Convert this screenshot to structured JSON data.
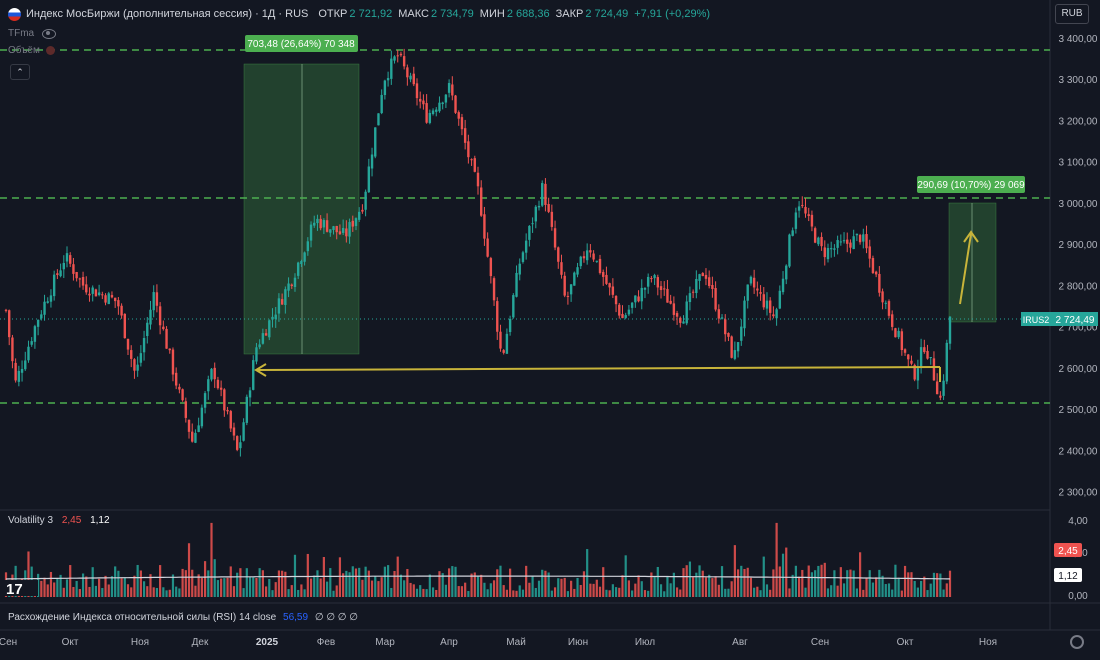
{
  "header": {
    "title": "Индекс МосБиржи (дополнительная сессия) · 1Д · RUS",
    "open_label": "ОТКР",
    "open": "2 721,92",
    "high_label": "МАКС",
    "high": "2 734,79",
    "low_label": "МИН",
    "low": "2 688,36",
    "close_label": "ЗАКР",
    "close": "2 724,49",
    "change": "+7,91 (+0,29%)"
  },
  "volume_label": "Объём",
  "tfma_label": "TFma",
  "currency": "RUB",
  "price_axis": [
    "3 400,00",
    "3 300,00",
    "3 200,00",
    "3 100,00",
    "3 000,00",
    "2 900,00",
    "2 800,00",
    "2 700,00",
    "2 600,00",
    "2 500,00",
    "2 400,00",
    "2 300,00"
  ],
  "price_axis_values": [
    3400,
    3300,
    3200,
    3100,
    3000,
    2900,
    2800,
    2700,
    2600,
    2500,
    2400,
    2300
  ],
  "time_axis": [
    "Сен",
    "Окт",
    "Ноя",
    "Дек",
    "2025",
    "Фев",
    "Мар",
    "Апр",
    "Май",
    "Июн",
    "Июл",
    "Авг",
    "Сен",
    "Окт",
    "Ноя"
  ],
  "ticker_tag": "IRUS2",
  "last_price": "2 724,49",
  "measure_1": "703,48 (26,64%) 70 348",
  "measure_2": "290,69 (10,70%) 29 069",
  "volatility": {
    "label": "Volatility 3",
    "v1": "2,45",
    "v2": "1,12",
    "axis": [
      "4,00",
      "2,00",
      "0,00"
    ]
  },
  "rsi": {
    "label": "Расхождение Индекса относительной силы (RSI) 14 close",
    "value": "56,59",
    "extra": "∅ ∅ ∅ ∅"
  },
  "colors": {
    "up": "#26a69a",
    "down": "#ef5350",
    "level": "#4caf50",
    "arrow": "#c8b43a",
    "bg": "#131722"
  },
  "chart_data": {
    "type": "candlestick",
    "title": "Индекс МосБиржи (дополнительная сессия) · 1Д · RUS",
    "levels": [
      3370,
      3020,
      2520
    ],
    "waypoints": [
      {
        "date": "2024-09-01",
        "price": 2740
      },
      {
        "date": "2024-09-05",
        "price": 2560
      },
      {
        "date": "2024-09-15",
        "price": 2720
      },
      {
        "date": "2024-09-27",
        "price": 2870
      },
      {
        "date": "2024-10-05",
        "price": 2800
      },
      {
        "date": "2024-10-20",
        "price": 2760
      },
      {
        "date": "2024-10-28",
        "price": 2580
      },
      {
        "date": "2024-11-05",
        "price": 2780
      },
      {
        "date": "2024-11-15",
        "price": 2560
      },
      {
        "date": "2024-11-22",
        "price": 2420
      },
      {
        "date": "2024-12-01",
        "price": 2600
      },
      {
        "date": "2024-12-12",
        "price": 2390
      },
      {
        "date": "2024-12-20",
        "price": 2650
      },
      {
        "date": "2025-01-05",
        "price": 2820
      },
      {
        "date": "2025-01-15",
        "price": 2960
      },
      {
        "date": "2025-01-28",
        "price": 2920
      },
      {
        "date": "2025-02-05",
        "price": 3000
      },
      {
        "date": "2025-02-14",
        "price": 3300
      },
      {
        "date": "2025-02-20",
        "price": 3360
      },
      {
        "date": "2025-03-05",
        "price": 3210
      },
      {
        "date": "2025-03-15",
        "price": 3280
      },
      {
        "date": "2025-03-28",
        "price": 3020
      },
      {
        "date": "2025-04-07",
        "price": 2620
      },
      {
        "date": "2025-04-15",
        "price": 2860
      },
      {
        "date": "2025-04-25",
        "price": 3040
      },
      {
        "date": "2025-05-05",
        "price": 2760
      },
      {
        "date": "2025-05-15",
        "price": 2900
      },
      {
        "date": "2025-05-30",
        "price": 2720
      },
      {
        "date": "2025-06-12",
        "price": 2820
      },
      {
        "date": "2025-06-25",
        "price": 2720
      },
      {
        "date": "2025-07-05",
        "price": 2840
      },
      {
        "date": "2025-07-18",
        "price": 2620
      },
      {
        "date": "2025-07-25",
        "price": 2810
      },
      {
        "date": "2025-08-05",
        "price": 2720
      },
      {
        "date": "2025-08-15",
        "price": 3010
      },
      {
        "date": "2025-08-26",
        "price": 2880
      },
      {
        "date": "2025-09-05",
        "price": 2900
      },
      {
        "date": "2025-09-12",
        "price": 2920
      },
      {
        "date": "2025-09-25",
        "price": 2720
      },
      {
        "date": "2025-10-05",
        "price": 2580
      },
      {
        "date": "2025-10-10",
        "price": 2660
      },
      {
        "date": "2025-10-17",
        "price": 2520
      },
      {
        "date": "2025-10-21",
        "price": 2724.49
      }
    ]
  }
}
